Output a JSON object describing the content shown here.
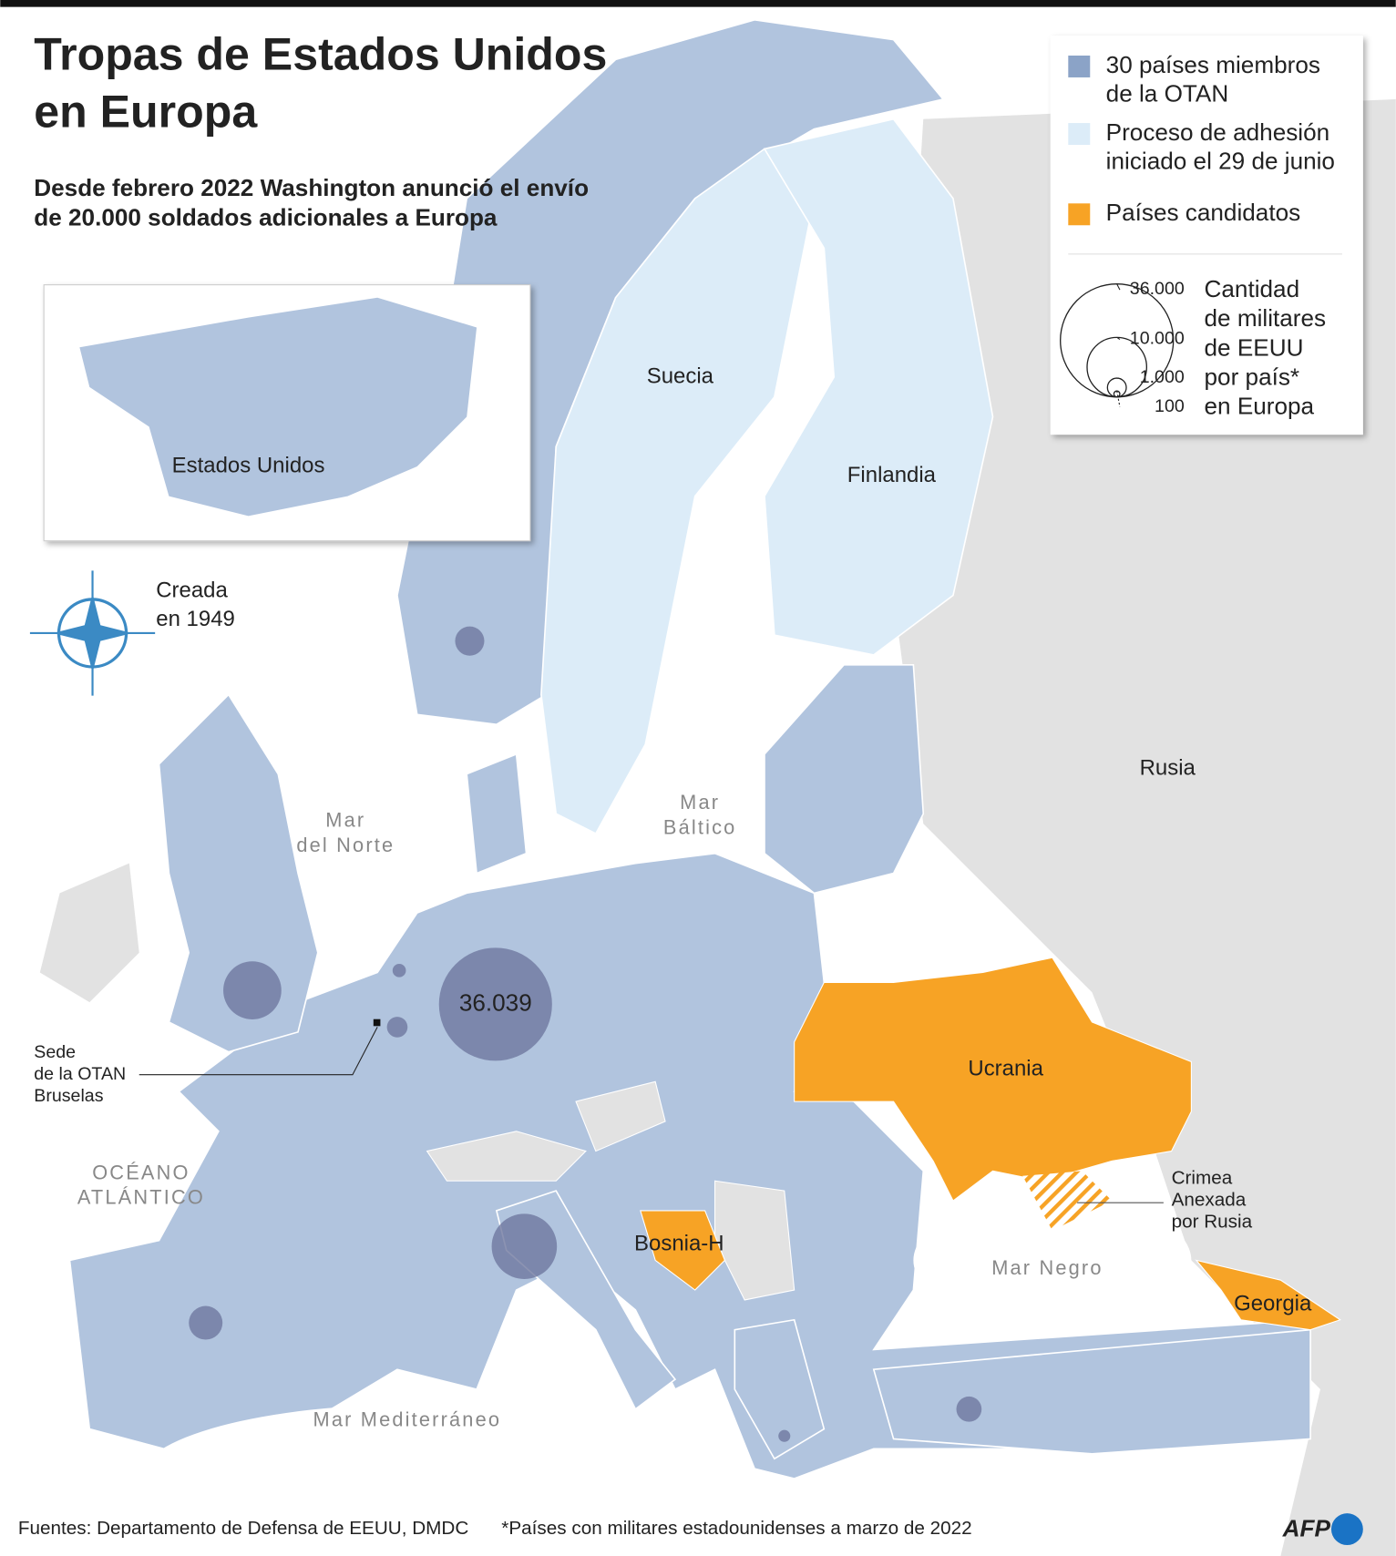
{
  "title_lines": [
    "Tropas de Estados Unidos",
    "en Europa"
  ],
  "subtitle_lines": [
    "Desde febrero 2022 Washington anunció el envío",
    "de 20.000 soldados adicionales a Europa"
  ],
  "legend": {
    "items": [
      {
        "label_lines": [
          "30 países miembros",
          "de la OTAN"
        ],
        "color": "#8ba3c7"
      },
      {
        "label_lines": [
          "Proceso de adhesión",
          "iniciado el 29 de junio"
        ],
        "color": "#dcecf8"
      },
      {
        "label_lines": [
          "Países candidatos"
        ],
        "color": "#f7a325"
      }
    ],
    "size_title_lines": [
      "Cantidad",
      "de militares",
      "de EEUU",
      "por país*",
      "en Europa"
    ],
    "sizes": [
      {
        "value": 36000,
        "label": "36.000"
      },
      {
        "value": 10000,
        "label": "10.000"
      },
      {
        "value": 1000,
        "label": "1.000"
      },
      100
    ]
  },
  "inset": {
    "label": "Estados Unidos"
  },
  "nato": {
    "label_lines": [
      "Creada",
      "en 1949"
    ]
  },
  "headquarters": {
    "label_lines": [
      "Sede",
      "de la OTAN",
      "Bruselas"
    ]
  },
  "crimea": {
    "label_lines": [
      "Crimea",
      "Anexada",
      "por Rusia"
    ]
  },
  "places": {
    "sweden": "Suecia",
    "finland": "Finlandia",
    "russia": "Rusia",
    "ukraine": "Ucrania",
    "bosnia": "Bosnia-H",
    "georgia": "Georgia"
  },
  "seas": {
    "north_lines": [
      "Mar",
      "del Norte"
    ],
    "baltic_lines": [
      "Mar",
      "Báltico"
    ],
    "atlantic_lines": [
      "OCÉANO",
      "ATLÁNTICO"
    ],
    "black": "Mar Negro",
    "mediterranean": "Mar Mediterráneo"
  },
  "troops": [
    {
      "value": 36039,
      "label": "36.039"
    },
    9500,
    12000,
    3200,
    1800,
    2400,
    1200,
    500,
    400
  ],
  "footer": {
    "sources": "Fuentes: Departamento de Defensa de EEUU, DMDC",
    "note": "*Países con militares estadounidenses a marzo de 2022",
    "logo": "AFP"
  }
}
